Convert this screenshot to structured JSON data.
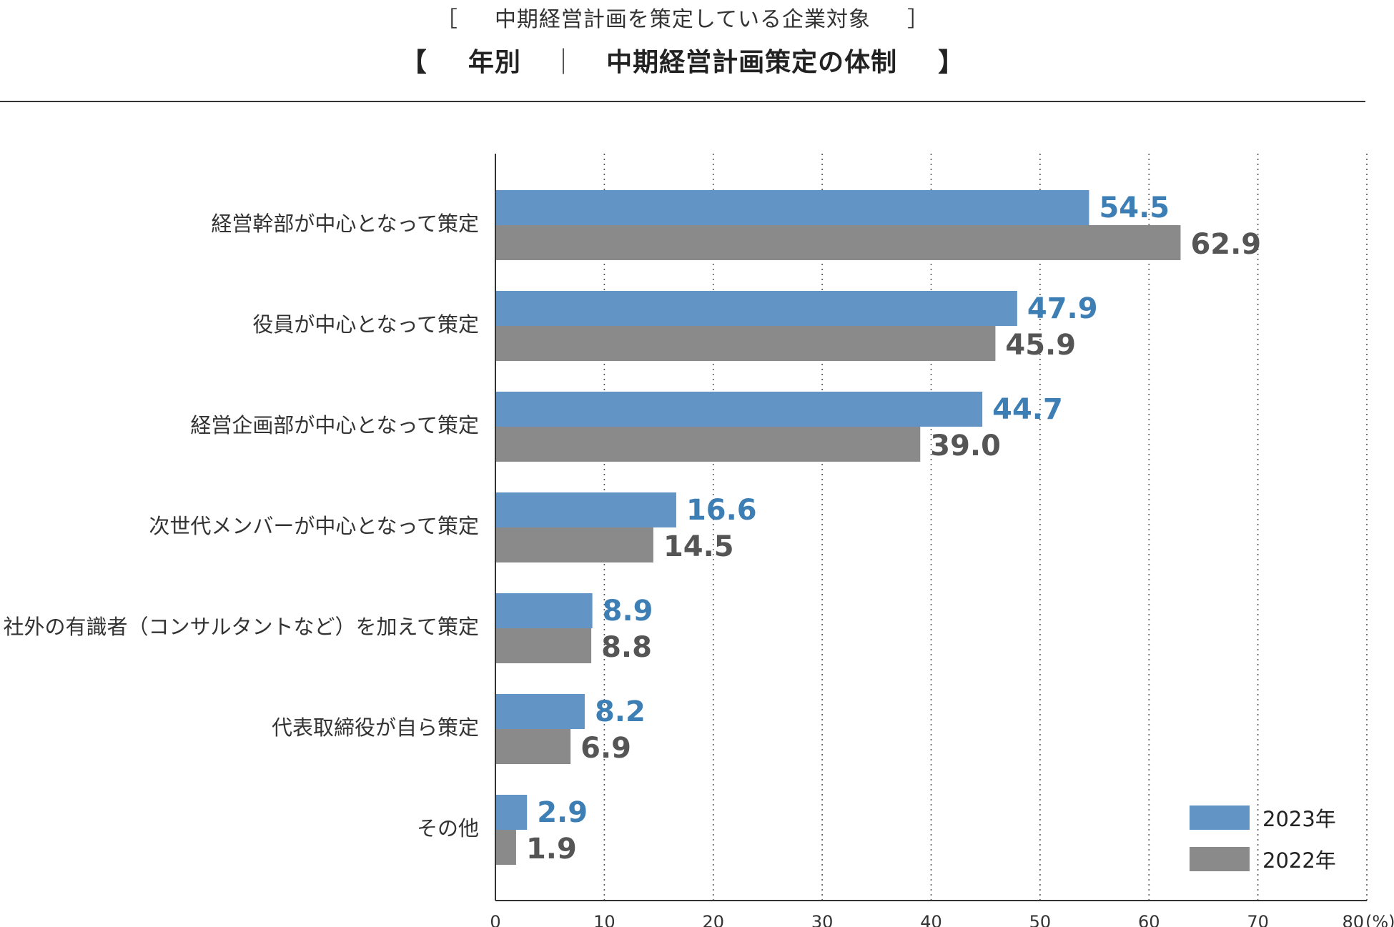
{
  "header": {
    "subtitle_open": "［",
    "subtitle": "中期経営計画を策定している企業対象",
    "subtitle_close": "］",
    "title_open": "【",
    "title_left": "年別",
    "title_sep": "｜",
    "title_right": "中期経営計画策定の体制",
    "title_close": "】"
  },
  "colors": {
    "series_2023": "#6294c5",
    "series_2022": "#8a8a8a",
    "label_2023": "#3d7fb4",
    "label_2022": "#555555"
  },
  "chart_data": {
    "type": "bar",
    "orientation": "horizontal",
    "title": "年別 ｜ 中期経営計画策定の体制",
    "subtitle": "中期経営計画を策定している企業対象",
    "categories": [
      "経営幹部が中心となって策定",
      "役員が中心となって策定",
      "経営企画部が中心となって策定",
      "次世代メンバーが中心となって策定",
      "社外の有識者（コンサルタントなど）を加えて策定",
      "代表取締役が自ら策定",
      "その他"
    ],
    "series": [
      {
        "name": "2023年",
        "values": [
          54.5,
          47.9,
          44.7,
          16.6,
          8.9,
          8.2,
          2.9
        ],
        "labels": [
          "54.5",
          "47.9",
          "44.7",
          "16.6",
          "8.9",
          "8.2",
          "2.9"
        ]
      },
      {
        "name": "2022年",
        "values": [
          62.9,
          45.9,
          39.0,
          14.5,
          8.8,
          6.9,
          1.9
        ],
        "labels": [
          "62.9",
          "45.9",
          "39.0",
          "14.5",
          "8.8",
          "6.9",
          "1.9"
        ]
      }
    ],
    "xlim": [
      0,
      80
    ],
    "xticks": [
      "0",
      "10",
      "20",
      "30",
      "40",
      "50",
      "60",
      "70",
      "80"
    ],
    "unit": "(%)",
    "grid": "vertical dotted",
    "legend": "bottom-right"
  }
}
